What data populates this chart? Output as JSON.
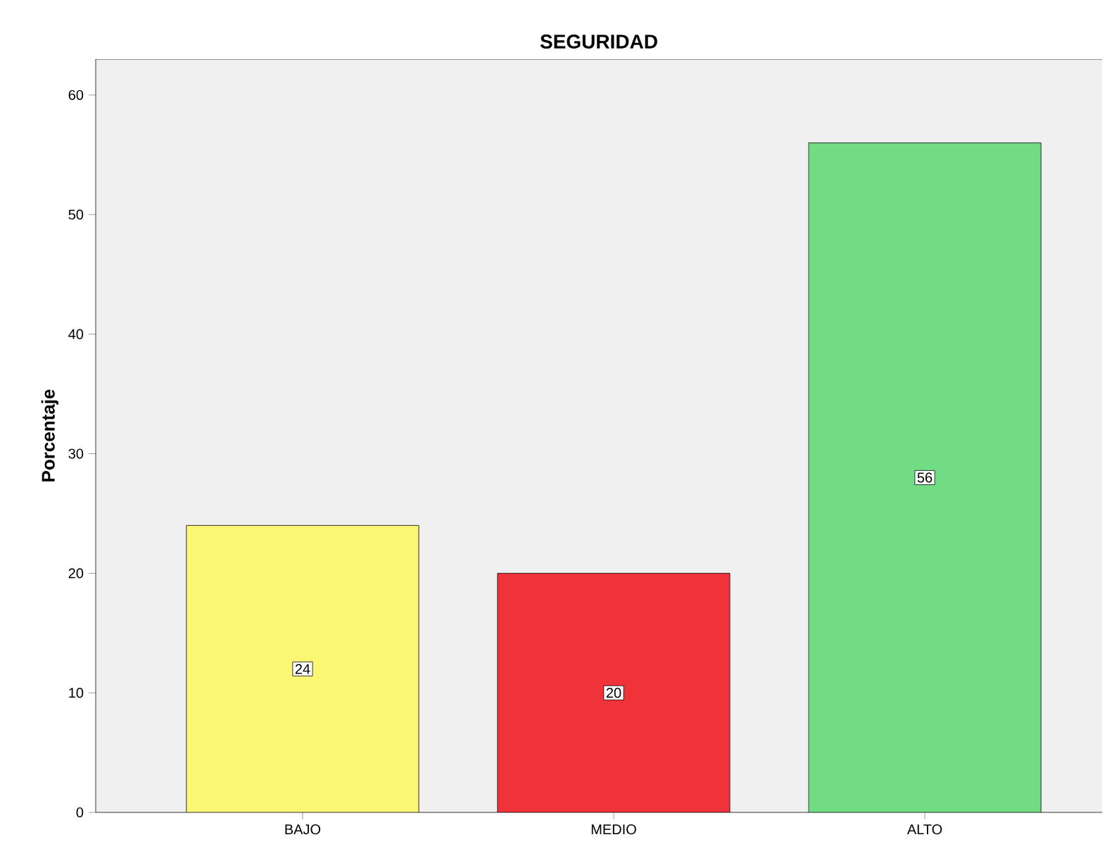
{
  "chart_data": {
    "type": "bar",
    "title": "SEGURIDAD",
    "ylabel": "Porcentaje",
    "categories": [
      "BAJO",
      "MEDIO",
      "ALTO"
    ],
    "values": [
      24,
      20,
      56
    ],
    "colors": [
      "#fbf774",
      "#f0323a",
      "#72dc85"
    ],
    "ylim": [
      0,
      63
    ],
    "yticks": [
      0,
      10,
      20,
      30,
      40,
      50,
      60
    ],
    "data_labels": true,
    "grid": false
  }
}
